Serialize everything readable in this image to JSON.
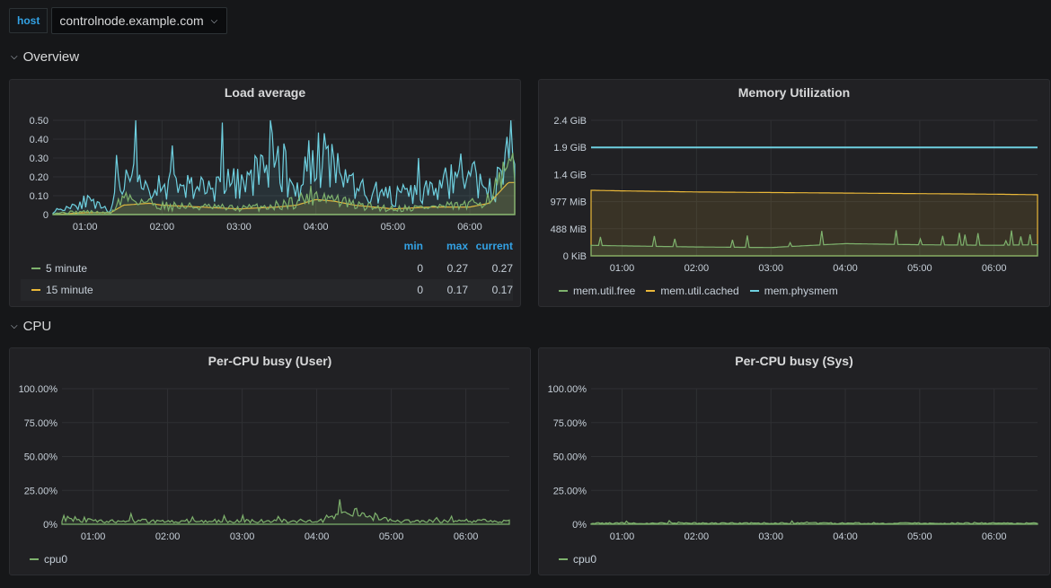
{
  "variables": {
    "host_label": "host",
    "host_value": "controlnode.example.com"
  },
  "rows": {
    "overview": "Overview",
    "cpu": "CPU"
  },
  "x_ticks": [
    "01:00",
    "02:00",
    "03:00",
    "04:00",
    "05:00",
    "06:00"
  ],
  "colors": {
    "green": "#7eb26d",
    "yellow": "#eab839",
    "cyan": "#6ed0e0",
    "blue_header": "#33a2e5"
  },
  "panels": {
    "load": {
      "title": "Load average",
      "y_ticks": [
        "0.50",
        "0.40",
        "0.30",
        "0.20",
        "0.10",
        "0"
      ],
      "legend_headers": {
        "min": "min",
        "max": "max",
        "current": "current"
      },
      "series": [
        {
          "name": "5 minute",
          "min": "0",
          "max": "0.27",
          "current": "0.27"
        },
        {
          "name": "15 minute",
          "min": "0",
          "max": "0.17",
          "current": "0.17"
        }
      ]
    },
    "memory": {
      "title": "Memory Utilization",
      "y_ticks": [
        "2.4 GiB",
        "1.9 GiB",
        "1.4 GiB",
        "977 MiB",
        "488 MiB",
        "0 KiB"
      ],
      "legend": [
        "mem.util.free",
        "mem.util.cached",
        "mem.physmem"
      ]
    },
    "cpu_user": {
      "title": "Per-CPU busy (User)",
      "y_ticks": [
        "100.00%",
        "75.00%",
        "50.00%",
        "25.00%",
        "0%"
      ],
      "legend": [
        "cpu0"
      ]
    },
    "cpu_sys": {
      "title": "Per-CPU busy (Sys)",
      "y_ticks": [
        "100.00%",
        "75.00%",
        "50.00%",
        "25.00%",
        "0%"
      ],
      "legend": [
        "cpu0"
      ]
    }
  },
  "chart_data": [
    {
      "type": "line",
      "title": "Load average",
      "ylim": [
        0,
        0.5
      ],
      "x": [
        "00:35",
        "01:00",
        "01:20",
        "01:30",
        "01:50",
        "02:00",
        "02:30",
        "03:00",
        "03:30",
        "03:45",
        "04:00",
        "04:15",
        "04:30",
        "05:00",
        "05:30",
        "06:00",
        "06:15",
        "06:30"
      ],
      "series": [
        {
          "name": "5 minute",
          "values": [
            0.01,
            0.02,
            0.01,
            0.12,
            0.08,
            0.06,
            0.05,
            0.04,
            0.06,
            0.09,
            0.14,
            0.1,
            0.06,
            0.04,
            0.05,
            0.06,
            0.12,
            0.27
          ]
        },
        {
          "name": "15 minute",
          "values": [
            0.0,
            0.01,
            0.01,
            0.05,
            0.06,
            0.05,
            0.04,
            0.03,
            0.04,
            0.05,
            0.08,
            0.07,
            0.05,
            0.03,
            0.04,
            0.04,
            0.06,
            0.17
          ]
        },
        {
          "values": [
            0.02,
            0.09,
            0.02,
            0.3,
            0.12,
            0.22,
            0.18,
            0.2,
            0.38,
            0.15,
            0.42,
            0.28,
            0.18,
            0.12,
            0.15,
            0.3,
            0.08,
            0.38
          ]
        }
      ]
    },
    {
      "type": "area",
      "title": "Memory Utilization",
      "x": [
        "00:35",
        "01:00",
        "02:00",
        "03:00",
        "04:00",
        "05:00",
        "06:00",
        "06:35"
      ],
      "series": [
        {
          "name": "mem.util.free",
          "values_mib": [
            190,
            180,
            160,
            150,
            220,
            200,
            190,
            200
          ]
        },
        {
          "name": "mem.util.cached",
          "values_mib": [
            1180,
            1170,
            1150,
            1140,
            1130,
            1120,
            1110,
            1100
          ]
        },
        {
          "name": "mem.physmem",
          "values_mib": [
            1950,
            1950,
            1950,
            1950,
            1950,
            1950,
            1950,
            1950
          ]
        }
      ]
    },
    {
      "type": "line",
      "title": "Per-CPU busy (User)",
      "ylim": [
        0,
        100
      ],
      "x": [
        "00:35",
        "01:00",
        "02:00",
        "03:00",
        "04:00",
        "04:35",
        "05:00",
        "06:00",
        "06:35"
      ],
      "series": [
        {
          "name": "cpu0",
          "values": [
            6,
            3,
            3,
            3,
            3,
            10,
            3,
            3,
            3
          ]
        }
      ]
    },
    {
      "type": "line",
      "title": "Per-CPU busy (Sys)",
      "ylim": [
        0,
        100
      ],
      "x": [
        "00:35",
        "01:00",
        "02:00",
        "03:00",
        "04:00",
        "05:00",
        "06:00",
        "06:35"
      ],
      "series": [
        {
          "name": "cpu0",
          "values": [
            1,
            1,
            1,
            1,
            1,
            1,
            1,
            1
          ]
        }
      ]
    }
  ]
}
